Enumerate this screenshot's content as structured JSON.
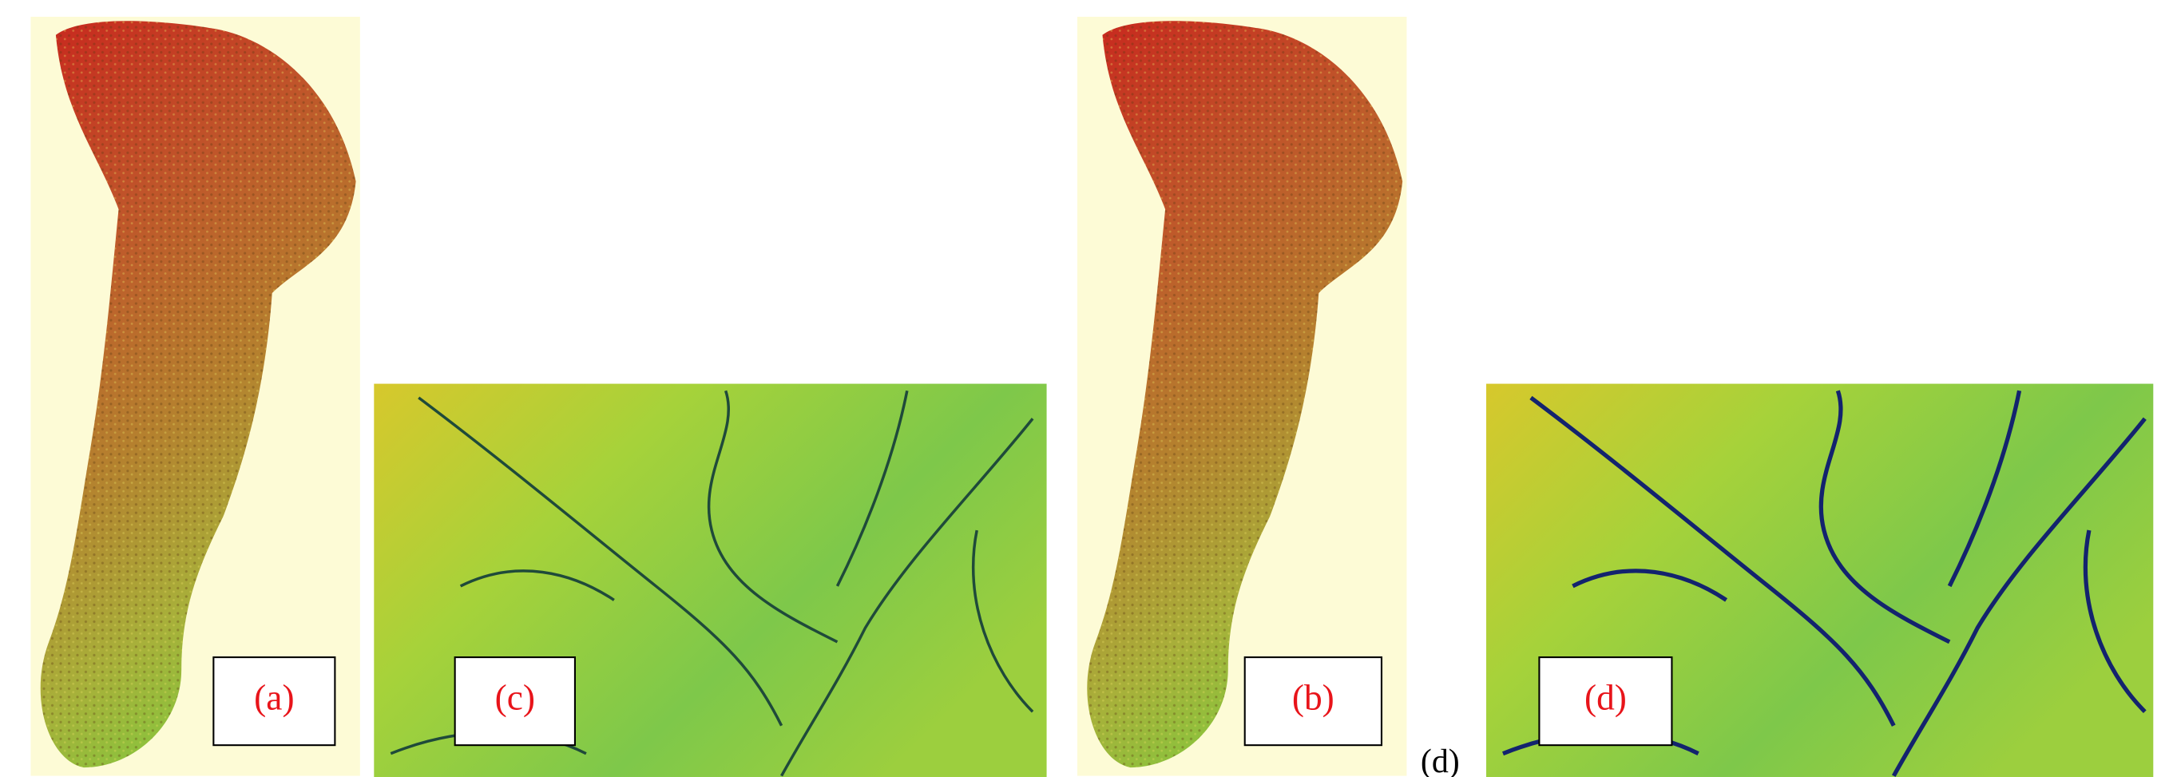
{
  "panels": [
    {
      "label": "(a)"
    },
    {
      "label": "(c)"
    },
    {
      "label": "(b)"
    },
    {
      "label": "(d)"
    }
  ],
  "caption": "(d)"
}
